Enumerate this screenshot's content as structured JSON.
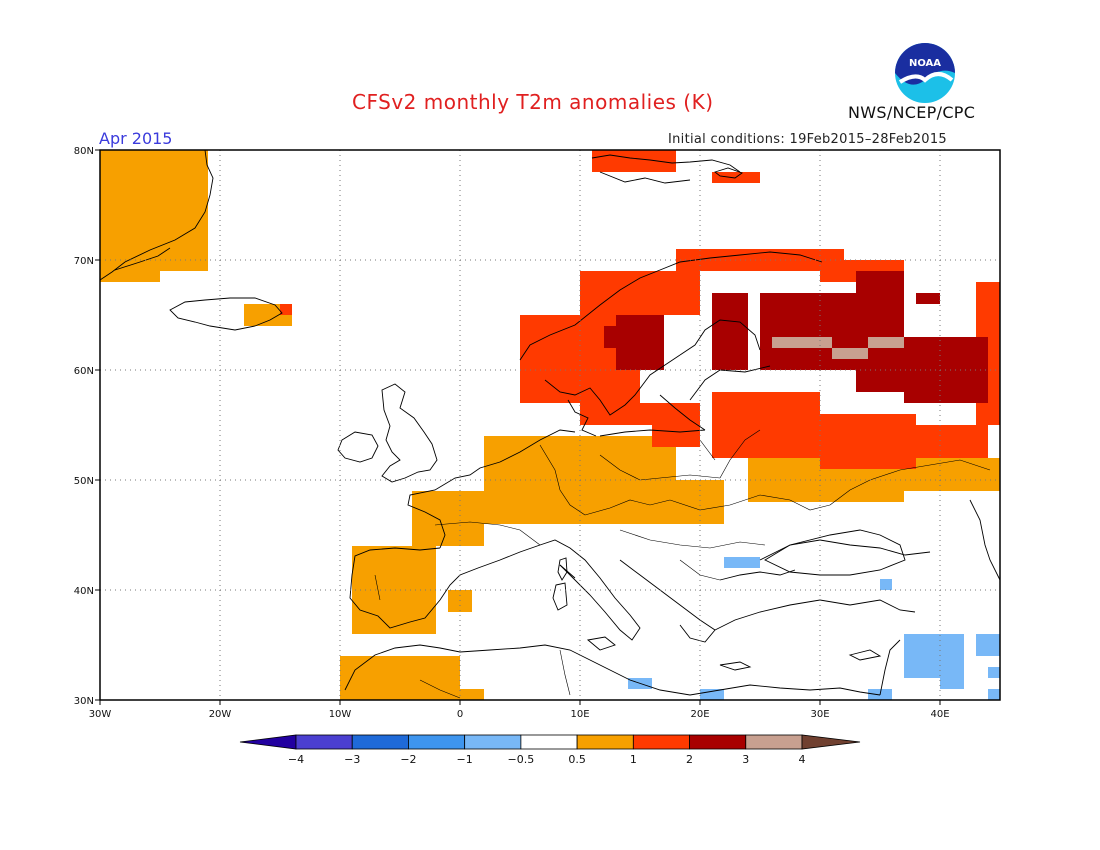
{
  "header": {
    "title": "CFSv2 monthly T2m anomalies (K)",
    "month": "Apr 2015",
    "initial_conditions": "Initial conditions: 19Feb2015–28Feb2015",
    "agency": "NWS/NCEP/CPC",
    "logo_text": "NOAA"
  },
  "map": {
    "lon_range": [
      -30,
      45
    ],
    "lat_range": [
      30,
      80
    ],
    "lon_ticks": [
      {
        "value": -30,
        "label": "30W"
      },
      {
        "value": -20,
        "label": "20W"
      },
      {
        "value": -10,
        "label": "10W"
      },
      {
        "value": 0,
        "label": "0"
      },
      {
        "value": 10,
        "label": "10E"
      },
      {
        "value": 20,
        "label": "20E"
      },
      {
        "value": 30,
        "label": "30E"
      },
      {
        "value": 40,
        "label": "40E"
      }
    ],
    "lat_ticks": [
      {
        "value": 30,
        "label": "30N"
      },
      {
        "value": 40,
        "label": "40N"
      },
      {
        "value": 50,
        "label": "50N"
      },
      {
        "value": 60,
        "label": "60N"
      },
      {
        "value": 70,
        "label": "70N"
      },
      {
        "value": 80,
        "label": "80N"
      }
    ],
    "grid": true
  },
  "legend": {
    "boundaries": [
      "-4",
      "-3",
      "-2",
      "-1",
      "-0.5",
      "0.5",
      "1",
      "2",
      "3",
      "4"
    ],
    "colors": [
      "#2200a0",
      "#4b3fd0",
      "#1f6ad8",
      "#3e95ee",
      "#78b8f7",
      "#ffffff",
      "#f7a000",
      "#ff3a00",
      "#a80000",
      "#c8a090",
      "#704030"
    ]
  },
  "anomaly_regions": [
    {
      "category": "0.5 to 1",
      "color": "#f7a000",
      "cells": [
        [
          -30,
          68,
          -25,
          80
        ],
        [
          -25,
          69,
          -21,
          80
        ],
        [
          -18,
          64,
          -14,
          66
        ],
        [
          2,
          46,
          18,
          54
        ],
        [
          -4,
          44,
          2,
          49
        ],
        [
          -9,
          36,
          -2,
          44
        ],
        [
          -10,
          30,
          0,
          34
        ],
        [
          0,
          30,
          2,
          31
        ],
        [
          10,
          46,
          22,
          50
        ],
        [
          24,
          48,
          37,
          54
        ],
        [
          36,
          49,
          45,
          52
        ],
        [
          -1,
          38,
          1,
          40
        ]
      ]
    },
    {
      "category": "1 to 2",
      "color": "#ff3a00",
      "cells": [
        [
          11,
          78,
          18,
          80
        ],
        [
          21,
          77,
          25,
          78
        ],
        [
          5,
          57,
          15,
          65
        ],
        [
          10,
          65,
          20,
          69
        ],
        [
          18,
          69,
          32,
          71
        ],
        [
          30,
          68,
          37,
          70
        ],
        [
          16,
          53,
          20,
          57
        ],
        [
          21,
          52,
          30,
          58
        ],
        [
          30,
          51,
          38,
          56
        ],
        [
          38,
          52,
          44,
          55
        ],
        [
          43,
          55,
          45,
          68
        ],
        [
          10,
          55,
          16,
          57
        ],
        [
          -15,
          65,
          -14,
          66
        ]
      ]
    },
    {
      "category": "2 to 3",
      "color": "#a80000",
      "cells": [
        [
          13,
          60,
          17,
          65
        ],
        [
          21,
          60,
          24,
          67
        ],
        [
          25,
          60,
          33,
          67
        ],
        [
          33,
          58,
          37,
          69
        ],
        [
          37,
          57,
          44,
          63
        ],
        [
          38,
          66,
          40,
          67
        ],
        [
          29,
          64,
          31,
          66
        ],
        [
          12,
          62,
          14,
          64
        ]
      ]
    },
    {
      "category": "3 to 4",
      "color": "#c8a090",
      "cells": [
        [
          26,
          62,
          31,
          63
        ],
        [
          31,
          61,
          34,
          62
        ],
        [
          34,
          62,
          37,
          63
        ]
      ]
    },
    {
      "category": "-1 to -0.5",
      "color": "#78b8f7",
      "cells": [
        [
          22,
          42,
          25,
          43
        ],
        [
          37,
          32,
          42,
          36
        ],
        [
          40,
          31,
          42,
          33
        ],
        [
          44,
          32,
          45,
          33
        ],
        [
          14,
          31,
          16,
          32
        ],
        [
          20,
          30,
          22,
          31
        ],
        [
          34,
          30,
          36,
          31
        ],
        [
          35,
          40,
          36,
          41
        ],
        [
          44,
          30,
          45,
          31
        ],
        [
          43,
          34,
          45,
          36
        ]
      ]
    }
  ]
}
